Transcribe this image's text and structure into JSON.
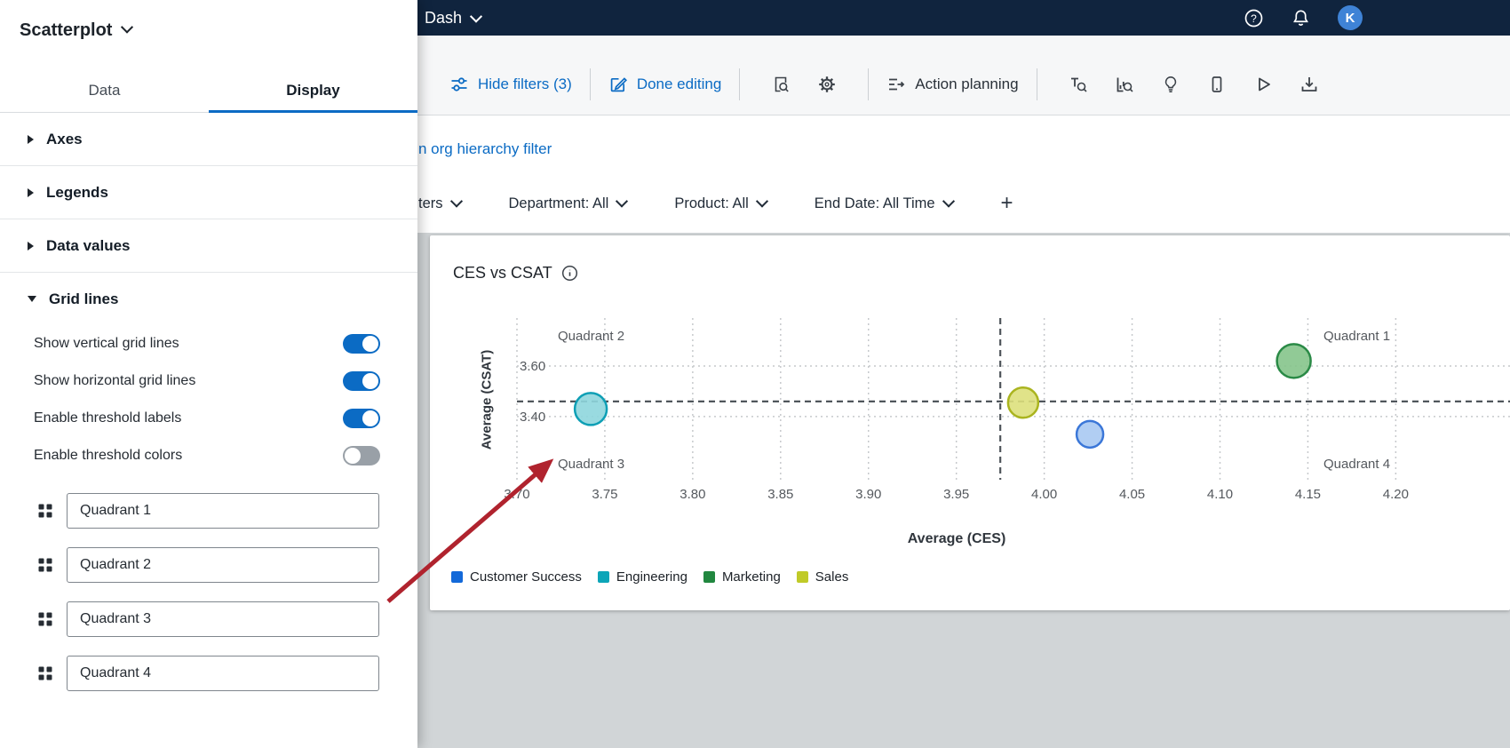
{
  "colors": {
    "accent_blue": "#0b6bc4",
    "topbar_navy": "#10243e",
    "canvas_gray": "#d1d5d7",
    "threshold_gray": "#50565c",
    "annotation_red": "#b0232e"
  },
  "icons": {
    "help": "question-circle",
    "notifications": "bell",
    "filter_sliders": "sliders",
    "done_editing": "pencil-square",
    "page_search": "document-magnifier",
    "settings": "gear",
    "action_planning": "list-arrow",
    "text_search": "text-magnifier",
    "chart_search": "chart-magnifier",
    "ideas": "lightbulb",
    "mobile_preview": "phone",
    "present": "play",
    "export": "download",
    "drag_handle": "grip-squares",
    "info": "info-circle"
  },
  "topbar": {
    "breadcrumb": "Dash",
    "avatar_initial": "K"
  },
  "toolbar": {
    "hide_filters_label": "Hide filters (3)",
    "done_editing_label": "Done editing",
    "action_planning_label": "Action planning"
  },
  "content": {
    "org_link_text": "n org hierarchy filter",
    "filter_partial": "ters",
    "filters": [
      {
        "label": "Department: All"
      },
      {
        "label": "Product: All"
      },
      {
        "label": "End Date: All Time"
      }
    ],
    "add_filter": "+"
  },
  "panel": {
    "title": "Scatterplot",
    "tabs": [
      {
        "label": "Data",
        "active": false
      },
      {
        "label": "Display",
        "active": true
      }
    ],
    "sections": [
      {
        "label": "Axes",
        "expanded": false
      },
      {
        "label": "Legends",
        "expanded": false
      },
      {
        "label": "Data values",
        "expanded": false
      },
      {
        "label": "Grid lines",
        "expanded": true
      }
    ],
    "toggles": [
      {
        "label": "Show vertical grid lines",
        "on": true
      },
      {
        "label": "Show horizontal grid lines",
        "on": true
      },
      {
        "label": "Enable threshold labels",
        "on": true
      },
      {
        "label": "Enable threshold colors",
        "on": false
      }
    ],
    "quadrant_inputs": [
      {
        "value": "Quadrant 1"
      },
      {
        "value": "Quadrant 2"
      },
      {
        "value": "Quadrant 3"
      },
      {
        "value": "Quadrant 4"
      }
    ]
  },
  "chart_data": {
    "type": "scatter",
    "title": "CES vs CSAT",
    "xlabel": "Average (CES)",
    "ylabel": "Average (CSAT)",
    "xlim": [
      3.7,
      4.265
    ],
    "ylim": [
      3.15,
      3.79
    ],
    "x_ticks": [
      3.7,
      3.75,
      3.8,
      3.85,
      3.9,
      3.95,
      4.0,
      4.05,
      4.1,
      4.15,
      4.2
    ],
    "y_ticks": [
      3.6,
      3.4
    ],
    "grid": true,
    "legend_position": "bottom",
    "threshold_x": 3.975,
    "threshold_y": 3.46,
    "quadrant_labels": [
      "Quadrant 1",
      "Quadrant 2",
      "Quadrant 3",
      "Quadrant 4"
    ],
    "series": [
      {
        "name": "Customer Success",
        "legend_color": "#1369d9",
        "fill": "#a9c9f2",
        "stroke": "#3b77d8",
        "points": [
          {
            "x": 4.026,
            "y": 3.33,
            "r": 15
          }
        ]
      },
      {
        "name": "Engineering",
        "legend_color": "#0da5b8",
        "fill": "#8ed6dd",
        "stroke": "#0e9fb5",
        "points": [
          {
            "x": 3.742,
            "y": 3.43,
            "r": 18
          }
        ]
      },
      {
        "name": "Marketing",
        "legend_color": "#21873f",
        "fill": "#85c48b",
        "stroke": "#2a8a46",
        "points": [
          {
            "x": 4.142,
            "y": 3.62,
            "r": 19
          }
        ]
      },
      {
        "name": "Sales",
        "legend_color": "#c0ca28",
        "fill": "#dde07c",
        "stroke": "#aab41f",
        "points": [
          {
            "x": 3.988,
            "y": 3.455,
            "r": 17
          }
        ]
      }
    ]
  }
}
